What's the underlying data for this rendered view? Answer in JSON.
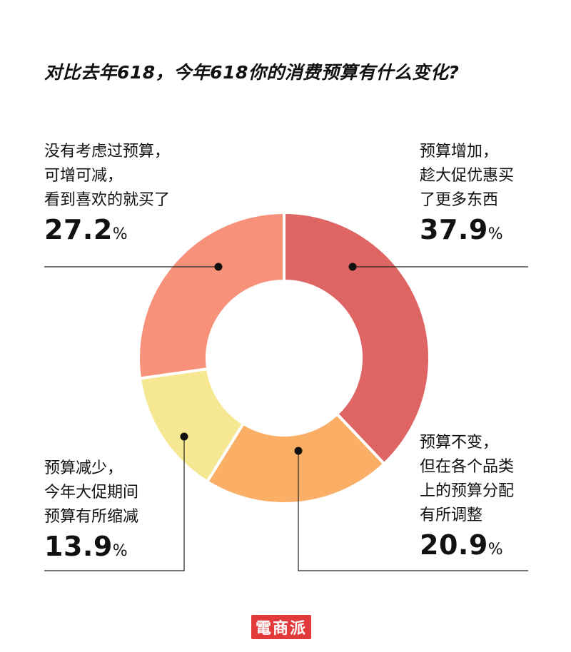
{
  "title": "对比去年618，今年618你的消费预算有什么变化?",
  "unit": "%",
  "logo_text": "電商派",
  "chart_data": {
    "type": "pie",
    "donut": true,
    "title": "对比去年618，今年618你的消费预算有什么变化?",
    "start_angle_deg": 0,
    "slices": [
      {
        "key": "increase",
        "label_lines": [
          "预算增加，",
          "趁大促优惠买",
          "了更多东西"
        ],
        "value": 37.9,
        "value_text": "37.9",
        "color": "#df6464"
      },
      {
        "key": "unchanged",
        "label_lines": [
          "预算不变，",
          "但在各个品类",
          "上的预算分配",
          "有所调整"
        ],
        "value": 20.9,
        "value_text": "20.9",
        "color": "#fbae65"
      },
      {
        "key": "decrease",
        "label_lines": [
          "预算减少，",
          "今年大促期间",
          "预算有所缩减"
        ],
        "value": 13.9,
        "value_text": "13.9",
        "color": "#f6e793"
      },
      {
        "key": "no-plan",
        "label_lines": [
          "没有考虑过预算，",
          "可增可减，",
          "看到喜欢的就买了"
        ],
        "value": 27.2,
        "value_text": "27.2",
        "color": "#f7917a"
      }
    ]
  }
}
